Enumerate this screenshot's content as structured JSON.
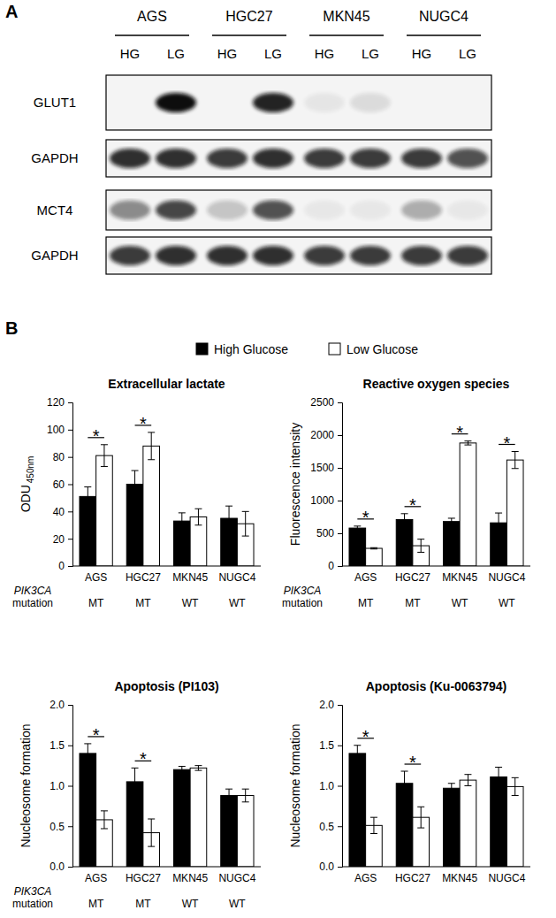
{
  "blot": {
    "panel_label": "A",
    "groups": [
      {
        "name": "AGS",
        "lanes": [
          "HG",
          "LG"
        ]
      },
      {
        "name": "HGC27",
        "lanes": [
          "HG",
          "LG"
        ]
      },
      {
        "name": "MKN45",
        "lanes": [
          "HG",
          "LG"
        ]
      },
      {
        "name": "NUGC4",
        "lanes": [
          "HG",
          "LG"
        ]
      }
    ],
    "rows": [
      {
        "label": "GLUT1",
        "intensity": [
          0,
          1,
          0,
          0.9,
          0.06,
          0.1,
          0,
          0
        ]
      },
      {
        "label": "GAPDH",
        "intensity": [
          0.85,
          0.85,
          0.8,
          0.85,
          0.8,
          0.8,
          0.8,
          0.7
        ]
      },
      {
        "label": "MCT4",
        "intensity": [
          0.45,
          0.75,
          0.2,
          0.7,
          0.05,
          0.05,
          0.3,
          0.05
        ]
      },
      {
        "label": "GAPDH",
        "intensity": [
          0.8,
          0.85,
          0.85,
          0.85,
          0.8,
          0.8,
          0.8,
          0.8
        ]
      }
    ]
  },
  "panel_b_label": "B",
  "chart_data": [
    {
      "type": "bar",
      "title": "Extracellular lactate",
      "y_label": "ODU",
      "y_label_subscript": "450nm",
      "categories": [
        "AGS",
        "HGC27",
        "MKN45",
        "NUGC4"
      ],
      "series": [
        {
          "name": "High Glucose",
          "color": "#000000",
          "values": [
            51,
            60,
            33,
            35
          ],
          "errors": [
            7,
            10,
            6,
            9
          ]
        },
        {
          "name": "Low Glucose",
          "color": "#ffffff",
          "values": [
            81,
            88,
            36,
            31
          ],
          "errors": [
            8,
            10,
            6,
            9
          ]
        }
      ],
      "ylim": [
        0,
        120
      ],
      "yticks": [
        0,
        20,
        40,
        60,
        80,
        100,
        120
      ],
      "significance": {
        "label": "*",
        "categories": [
          0,
          1
        ]
      },
      "annotations": {
        "label_lines": [
          "PIK3CA",
          "mutation"
        ],
        "values": [
          "MT",
          "MT",
          "WT",
          "WT"
        ]
      }
    },
    {
      "type": "bar",
      "title": "Reactive oxygen species",
      "y_label": "Fluorescence intensity",
      "categories": [
        "AGS",
        "HGC27",
        "MKN45",
        "NUGC4"
      ],
      "series": [
        {
          "color": "#000000",
          "values": [
            580,
            710,
            680,
            660
          ],
          "errors": [
            30,
            90,
            50,
            150
          ]
        },
        {
          "color": "#ffffff",
          "values": [
            270,
            310,
            1880,
            1620
          ],
          "errors": [
            10,
            100,
            30,
            130
          ]
        }
      ],
      "ylim": [
        0,
        2500
      ],
      "yticks": [
        0,
        500,
        1000,
        1500,
        2000,
        2500
      ],
      "significance": {
        "label": "*",
        "categories": [
          0,
          1,
          2,
          3
        ]
      },
      "annotations": {
        "label_lines": [
          "PIK3CA",
          "mutation"
        ],
        "values": [
          "MT",
          "MT",
          "WT",
          "WT"
        ]
      }
    },
    {
      "type": "bar",
      "title": "Apoptosis (PI103)",
      "y_label": "Nucleosome formation",
      "categories": [
        "AGS",
        "HGC27",
        "MKN45",
        "NUGC4"
      ],
      "series": [
        {
          "color": "#000000",
          "values": [
            1.4,
            1.05,
            1.2,
            0.88
          ],
          "errors": [
            0.12,
            0.17,
            0.04,
            0.08
          ]
        },
        {
          "color": "#ffffff",
          "values": [
            0.58,
            0.42,
            1.22,
            0.88
          ],
          "errors": [
            0.11,
            0.17,
            0.03,
            0.08
          ]
        }
      ],
      "ylim": [
        0,
        2
      ],
      "yticks": [
        {
          "value": 0,
          "label": "0.0"
        },
        {
          "value": 0.5,
          "label": "0.5"
        },
        {
          "value": 1,
          "label": "1.0"
        },
        {
          "value": 1.5,
          "label": "1.5"
        },
        {
          "value": 2,
          "label": "2.0"
        }
      ],
      "significance": {
        "label": "*",
        "categories": [
          0,
          1
        ]
      },
      "annotations": {
        "label_lines": [
          "PIK3CA",
          "mutation"
        ],
        "values": [
          "MT",
          "MT",
          "WT",
          "WT"
        ]
      }
    },
    {
      "type": "bar",
      "title": "Apoptosis (Ku-0063794)",
      "y_label": "Nucleosome formation",
      "categories": [
        "AGS",
        "HGC27",
        "MKN45",
        "NUGC4"
      ],
      "series": [
        {
          "color": "#000000",
          "values": [
            1.4,
            1.03,
            0.97,
            1.11
          ],
          "errors": [
            0.1,
            0.15,
            0.06,
            0.12
          ]
        },
        {
          "color": "#ffffff",
          "values": [
            0.51,
            0.61,
            1.07,
            0.99
          ],
          "errors": [
            0.1,
            0.13,
            0.07,
            0.11
          ]
        }
      ],
      "ylim": [
        0,
        2
      ],
      "yticks": [
        {
          "value": 0,
          "label": "0.0"
        },
        {
          "value": 0.5,
          "label": "0.5"
        },
        {
          "value": 1,
          "label": "1.0"
        },
        {
          "value": 1.5,
          "label": "1.5"
        },
        {
          "value": 2,
          "label": "2.0"
        }
      ],
      "significance": {
        "label": "*",
        "categories": [
          0,
          1
        ]
      }
    }
  ]
}
